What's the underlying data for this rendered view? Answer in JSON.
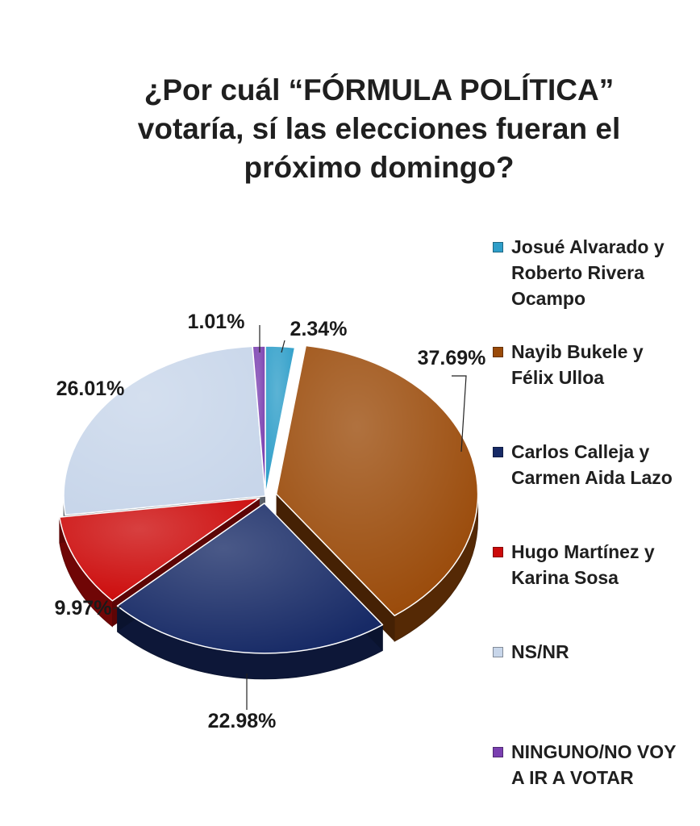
{
  "chart_data": {
    "type": "pie",
    "title": "¿Por cuál “FÓRMULA POLÍTICA” votaría, sí las elecciones fueran el próximo domingo?",
    "title_lines": [
      "¿Por cuál “FÓRMULA POLÍTICA”",
      "votaría, sí las elecciones fueran el",
      "próximo domingo?"
    ],
    "legend_position": "right",
    "slices": [
      {
        "label": "Josué Alvarado y Roberto Rivera Ocampo",
        "value": 2.34,
        "value_label": "2.34%",
        "color": "#2e9ec9"
      },
      {
        "label": "Nayib Bukele y Félix Ulloa",
        "value": 37.69,
        "value_label": "37.69%",
        "color": "#9a4a09"
      },
      {
        "label": "Carlos Calleja y Carmen Aida Lazo",
        "value": 22.98,
        "value_label": "22.98%",
        "color": "#172a66"
      },
      {
        "label": "Hugo Martínez y Karina Sosa",
        "value": 9.97,
        "value_label": "9.97%",
        "color": "#cc0a0a"
      },
      {
        "label": "NS/NR",
        "value": 26.01,
        "value_label": "26.01%",
        "color": "#c8d6ea"
      },
      {
        "label": "NINGUNO/NO VOY A IR A VOTAR",
        "value": 1.01,
        "value_label": "1.01%",
        "color": "#7a3fb0"
      }
    ]
  },
  "legend": {
    "items": [
      "Josué Alvarado y\nRoberto Rivera\nOcampo",
      "Nayib Bukele y\nFélix Ulloa",
      "Carlos Calleja y\nCarmen Aida Lazo",
      "Hugo Martínez y\nKarina Sosa",
      "NS/NR",
      "NINGUNO/NO VOY\nA IR A VOTAR"
    ]
  }
}
